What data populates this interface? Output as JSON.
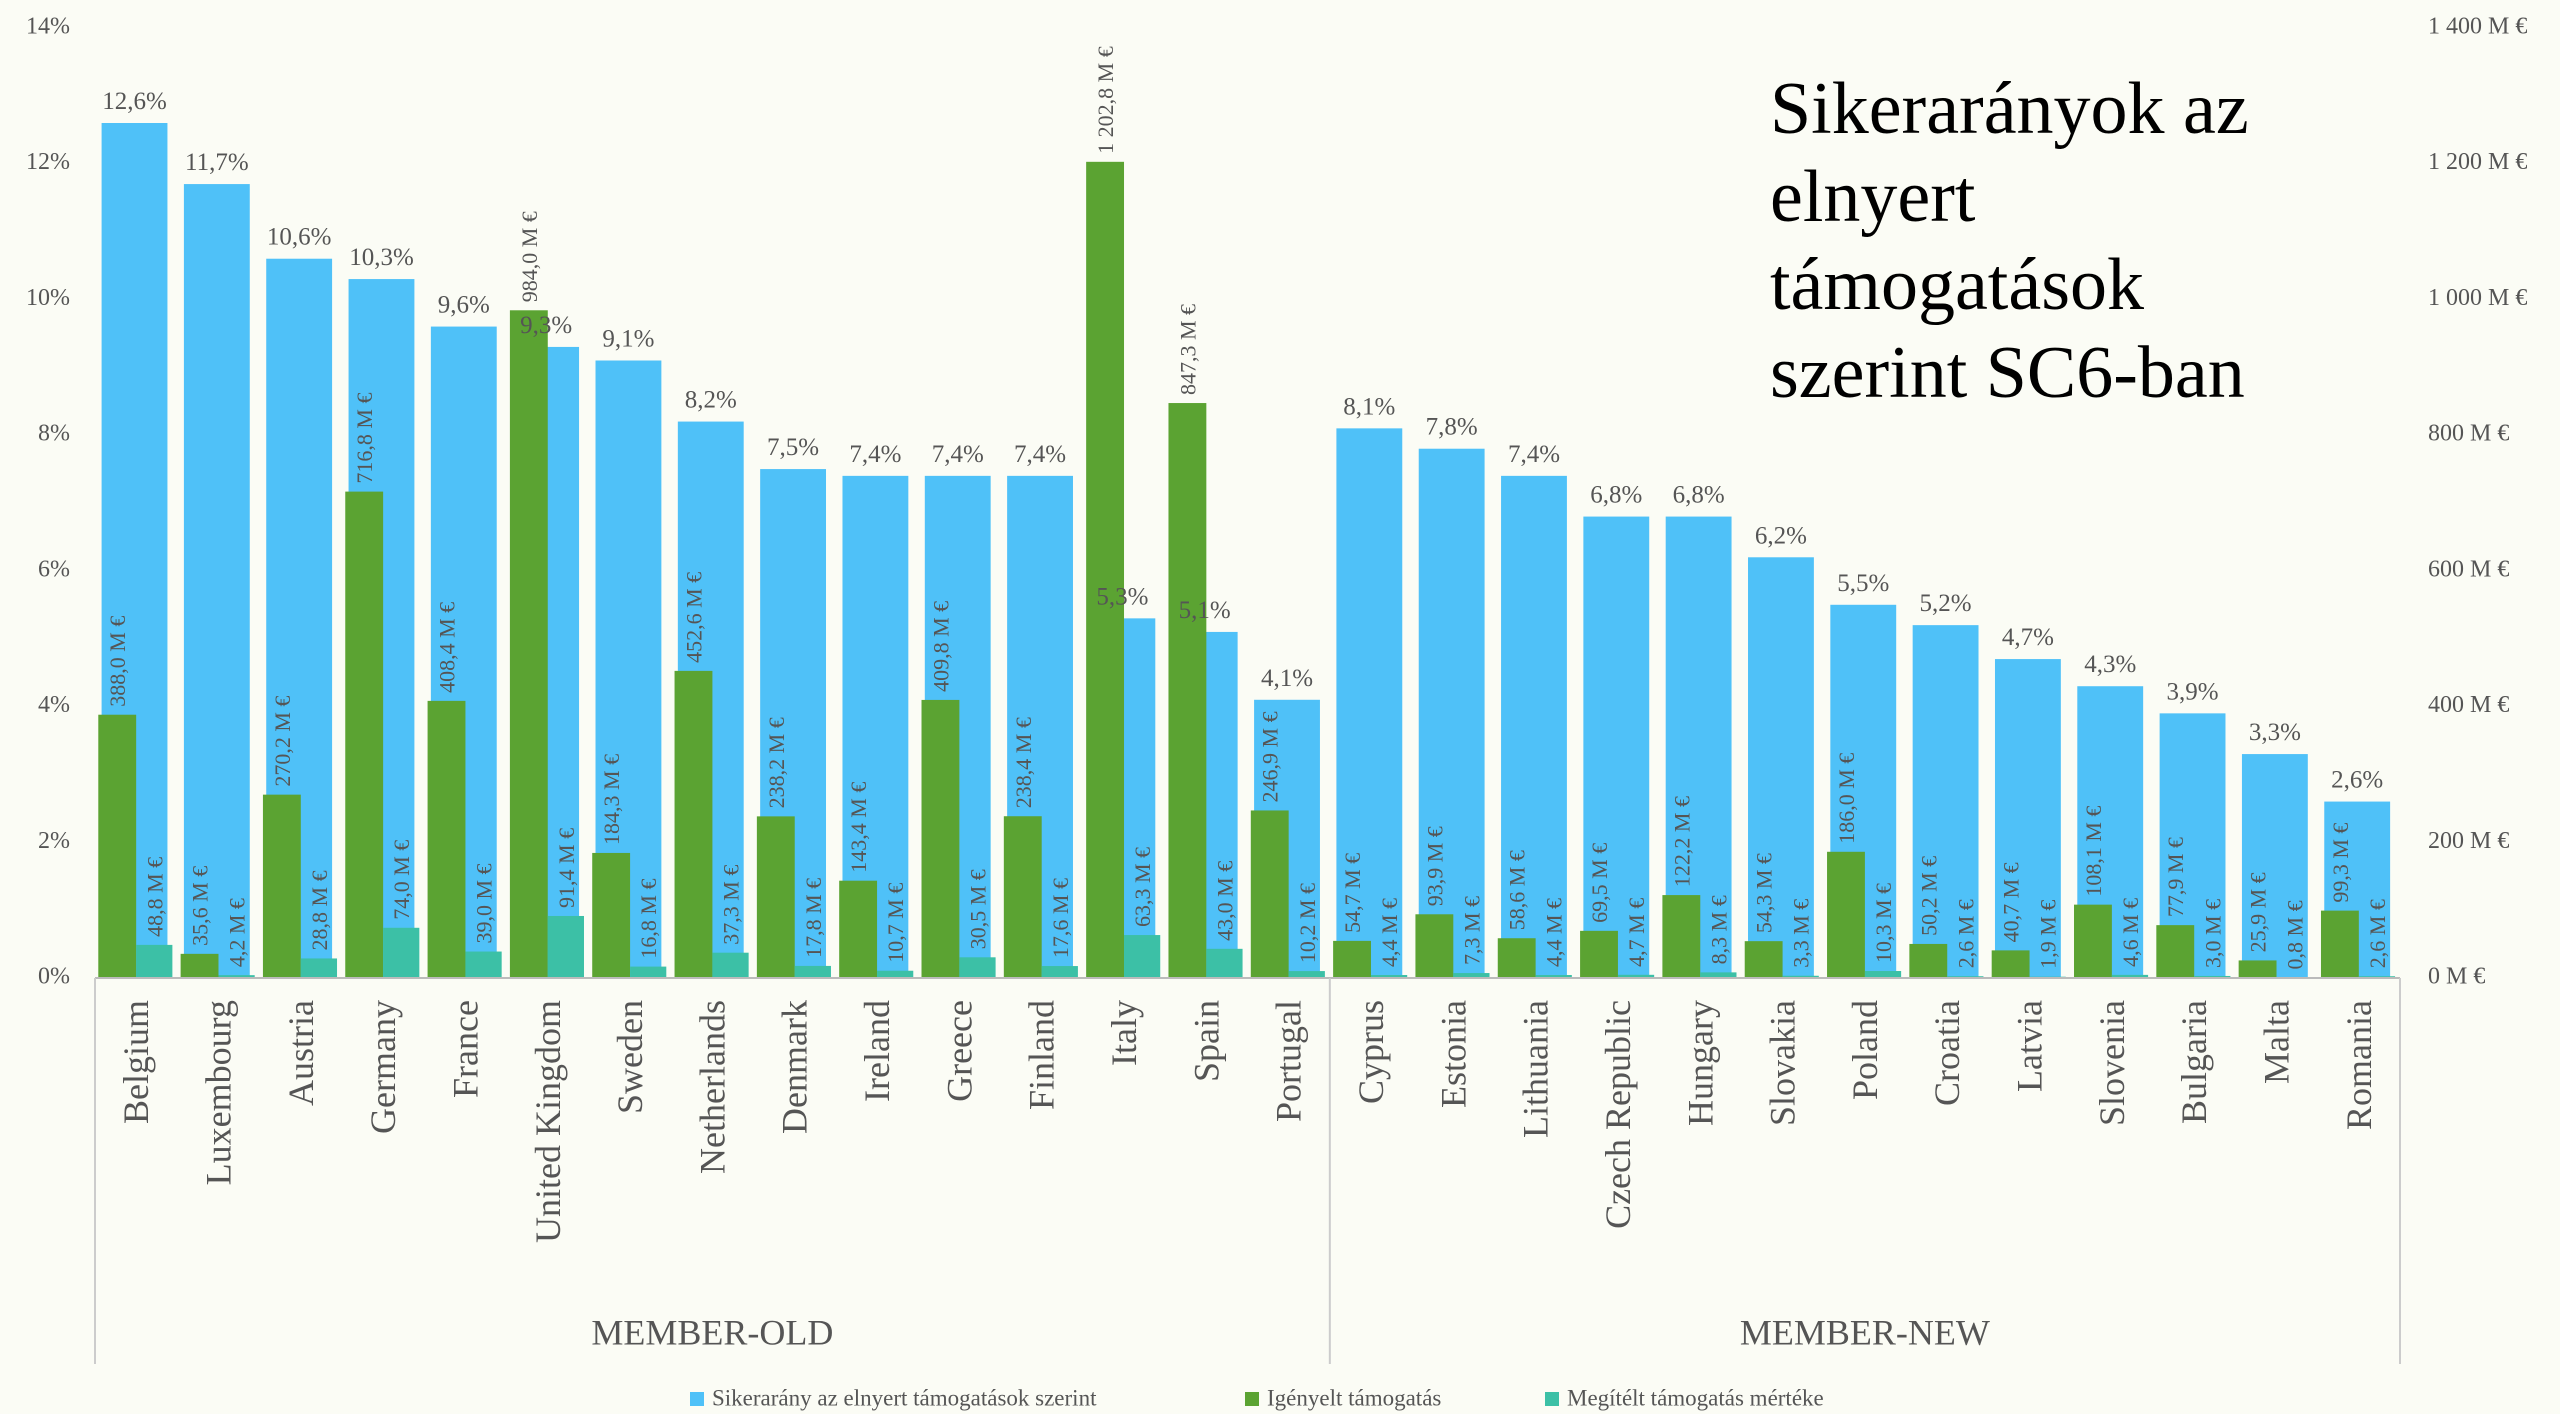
{
  "chart_data": {
    "type": "bar",
    "title": "Sikerarányok az elnyert támogatások szerint SC6-ban",
    "groups": [
      {
        "name": "MEMBER-OLD",
        "categories": [
          "Belgium",
          "Luxembourg",
          "Austria",
          "Germany",
          "France",
          "United Kingdom",
          "Sweden",
          "Netherlands",
          "Denmark",
          "Ireland",
          "Greece",
          "Finland",
          "Italy",
          "Spain",
          "Portugal"
        ]
      },
      {
        "name": "MEMBER-NEW",
        "categories": [
          "Cyprus",
          "Estonia",
          "Lithuania",
          "Czech Republic",
          "Hungary",
          "Slovakia",
          "Poland",
          "Croatia",
          "Latvia",
          "Slovenia",
          "Bulgaria",
          "Malta",
          "Romania"
        ]
      }
    ],
    "series": [
      {
        "name": "Sikerarány az elnyert támogatások szerint",
        "color": "#4fc1f8",
        "axis": "y",
        "values": [
          12.6,
          11.7,
          10.6,
          10.3,
          9.6,
          9.3,
          9.1,
          8.2,
          7.5,
          7.4,
          7.4,
          7.4,
          5.3,
          5.1,
          4.1,
          8.1,
          7.8,
          7.4,
          6.8,
          6.8,
          6.2,
          5.5,
          5.2,
          4.7,
          4.3,
          3.9,
          3.3,
          2.6
        ],
        "value_labels": [
          "12,6%",
          "11,7%",
          "10,6%",
          "10,3%",
          "9,6%",
          "9,3%",
          "9,1%",
          "8,2%",
          "7,5%",
          "7,4%",
          "7,4%",
          "7,4%",
          "5,3%",
          "5,1%",
          "4,1%",
          "8,1%",
          "7,8%",
          "7,4%",
          "6,8%",
          "6,8%",
          "6,2%",
          "5,5%",
          "5,2%",
          "4,7%",
          "4,3%",
          "3,9%",
          "3,3%",
          "2,6%"
        ]
      },
      {
        "name": "Igényelt támogatás",
        "color": "#5ba332",
        "axis": "y2",
        "values": [
          388.0,
          35.6,
          270.2,
          716.8,
          408.4,
          984.0,
          184.3,
          452.6,
          238.2,
          143.4,
          409.8,
          238.4,
          1202.8,
          847.3,
          246.9,
          54.7,
          93.9,
          58.6,
          69.5,
          122.2,
          54.3,
          186.0,
          50.2,
          40.7,
          108.1,
          77.9,
          25.9,
          99.3
        ],
        "value_labels": [
          "388,0 M €",
          "35,6 M €",
          "270,2 M €",
          "716,8 M €",
          "408,4 M €",
          "984,0 M €",
          "184,3 M €",
          "452,6 M €",
          "238,2 M €",
          "143,4 M €",
          "409,8 M €",
          "238,4 M €",
          "1 202,8 M €",
          "847,3 M €",
          "246,9 M €",
          "54,7 M €",
          "93,9 M €",
          "58,6 M €",
          "69,5 M €",
          "122,2 M €",
          "54,3 M €",
          "186,0 M €",
          "50,2 M €",
          "40,7 M €",
          "108,1 M €",
          "77,9 M €",
          "25,9 M €",
          "99,3 M €"
        ]
      },
      {
        "name": "Megítélt támogatás mértéke",
        "color": "#3cc0a6",
        "axis": "y2",
        "values": [
          48.8,
          4.2,
          28.8,
          74.0,
          39.0,
          91.4,
          16.8,
          37.3,
          17.8,
          10.7,
          30.5,
          17.6,
          63.3,
          43.0,
          10.2,
          4.4,
          7.3,
          4.4,
          4.7,
          8.3,
          3.3,
          10.3,
          2.6,
          1.9,
          4.6,
          3.0,
          0.8,
          2.6
        ],
        "value_labels": [
          "48,8 M €",
          "4,2 M €",
          "28,8 M €",
          "74,0 M €",
          "39,0 M €",
          "91,4 M €",
          "16,8 M €",
          "37,3 M €",
          "17,8 M €",
          "10,7 M €",
          "30,5 M €",
          "17,6 M €",
          "63,3 M €",
          "43,0 M €",
          "10,2 M €",
          "4,4 M €",
          "7,3 M €",
          "4,4 M €",
          "4,7 M €",
          "8,3 M €",
          "3,3 M €",
          "10,3 M €",
          "2,6 M €",
          "1,9 M €",
          "4,6 M €",
          "3,0 M €",
          "0,8 M €",
          "2,6 M €"
        ]
      }
    ],
    "ylim": [
      0,
      14
    ],
    "yticks": [
      {
        "value": 0,
        "label": "0%"
      },
      {
        "value": 2,
        "label": "2%"
      },
      {
        "value": 4,
        "label": "4%"
      },
      {
        "value": 6,
        "label": "6%"
      },
      {
        "value": 8,
        "label": "8%"
      },
      {
        "value": 10,
        "label": "10%"
      },
      {
        "value": 12,
        "label": "12%"
      },
      {
        "value": 14,
        "label": "14%"
      }
    ],
    "y2lim": [
      0,
      1400
    ],
    "y2ticks": [
      {
        "value": 0,
        "label": "0 M €"
      },
      {
        "value": 200,
        "label": "200 M €"
      },
      {
        "value": 400,
        "label": "400 M €"
      },
      {
        "value": 600,
        "label": "600 M €"
      },
      {
        "value": 800,
        "label": "800 M €"
      },
      {
        "value": 1000,
        "label": "1 000 M €"
      },
      {
        "value": 1200,
        "label": "1 200 M €"
      },
      {
        "value": 1400,
        "label": "1 400 M €"
      }
    ],
    "grid": false,
    "legend": "bottom"
  }
}
